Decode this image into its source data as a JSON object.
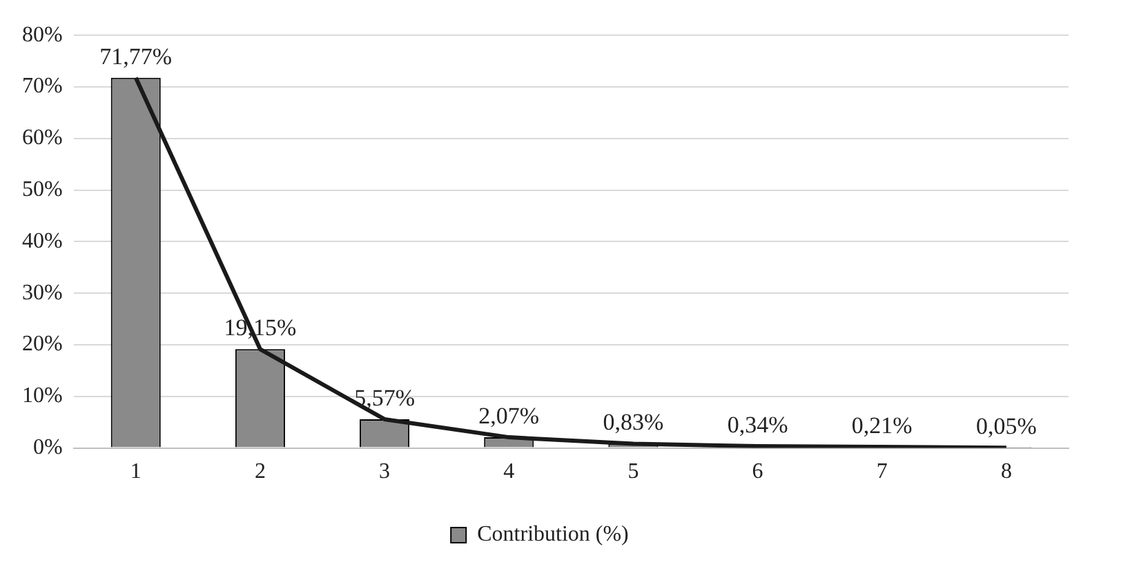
{
  "chart_data": {
    "type": "bar",
    "categories": [
      "1",
      "2",
      "3",
      "4",
      "5",
      "6",
      "7",
      "8"
    ],
    "series": [
      {
        "name": "Contribution (%)",
        "color": "#8a8a8a",
        "values": [
          71.77,
          19.15,
          5.57,
          2.07,
          0.83,
          0.34,
          0.21,
          0.05
        ],
        "value_labels": [
          "71,77%",
          "19,15%",
          "5,57%",
          "2,07%",
          "0,83%",
          "0,34%",
          "0,21%",
          "0,05%"
        ]
      },
      {
        "type": "line",
        "color": "#1a1a1a",
        "values": [
          71.77,
          19.15,
          5.57,
          2.07,
          0.83,
          0.34,
          0.21,
          0.05
        ]
      }
    ],
    "ylim": [
      0,
      80
    ],
    "yticks": [
      {
        "value": 0,
        "label": "0%"
      },
      {
        "value": 10,
        "label": "10%"
      },
      {
        "value": 20,
        "label": "20%"
      },
      {
        "value": 30,
        "label": "30%"
      },
      {
        "value": 40,
        "label": "40%"
      },
      {
        "value": 50,
        "label": "50%"
      },
      {
        "value": 60,
        "label": "60%"
      },
      {
        "value": 70,
        "label": "70%"
      },
      {
        "value": 80,
        "label": "80%"
      }
    ],
    "grid": "y",
    "legend": "bottom",
    "marker": "none",
    "line_style": "solid"
  }
}
